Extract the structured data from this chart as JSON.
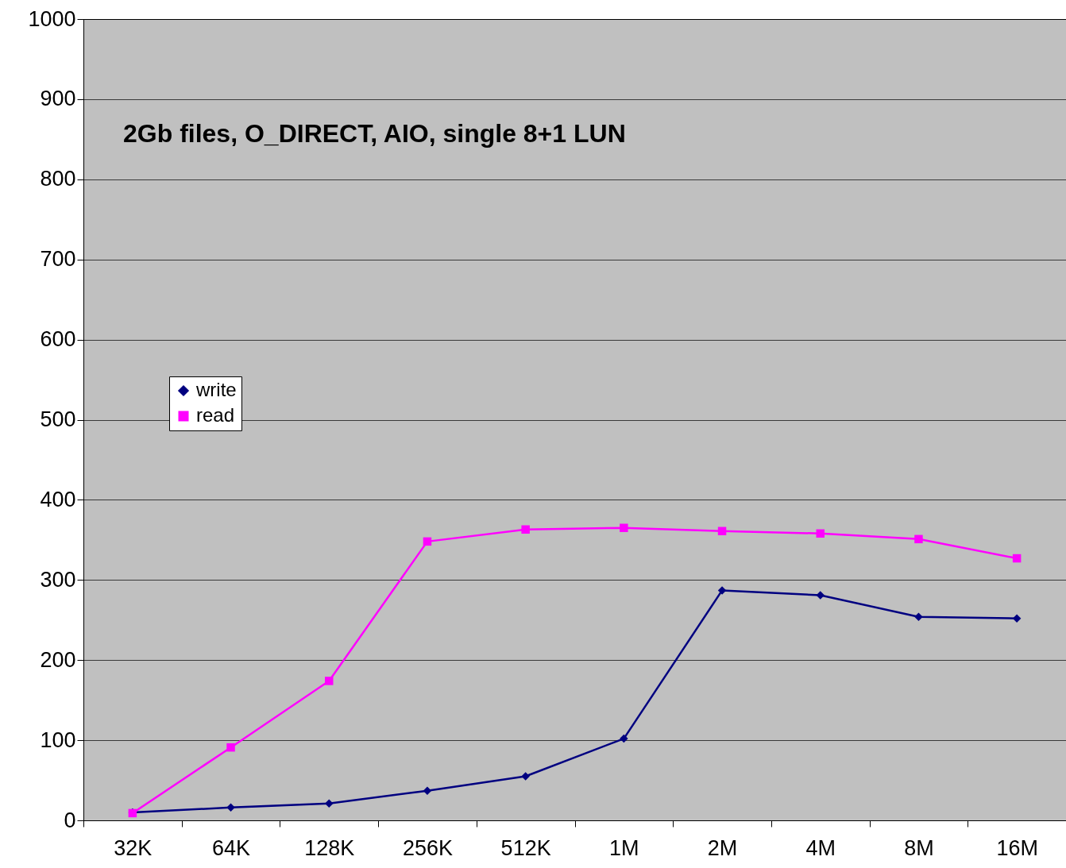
{
  "chart_data": {
    "type": "line",
    "annotations": [
      "2Gb files, O_DIRECT, AIO, single 8+1 LUN"
    ],
    "categories": [
      "32K",
      "64K",
      "128K",
      "256K",
      "512K",
      "1M",
      "2M",
      "4M",
      "8M",
      "16M"
    ],
    "series": [
      {
        "name": "write",
        "color": "#000080",
        "marker": "diamond",
        "values": [
          10,
          16,
          21,
          37,
          55,
          102,
          287,
          281,
          254,
          252
        ]
      },
      {
        "name": "read",
        "color": "#ff00ff",
        "marker": "square",
        "values": [
          9,
          91,
          174,
          348,
          363,
          365,
          361,
          358,
          351,
          327
        ]
      }
    ],
    "ylim": [
      0,
      1000
    ],
    "yticks": [
      0,
      100,
      200,
      300,
      400,
      500,
      600,
      700,
      800,
      900,
      1000
    ],
    "grid": "y",
    "legend": "left"
  }
}
